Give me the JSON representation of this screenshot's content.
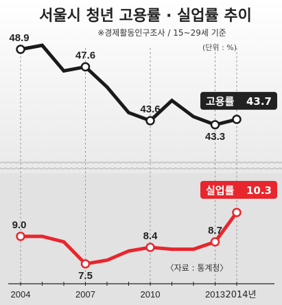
{
  "chart_data": {
    "type": "line",
    "title": "서울시 청년 고용률 · 실업률 추이",
    "subtitle": "※경제활동인구조사 / 15~29세 기준",
    "unit_label": "(단위 : %)",
    "source": "〈자료 : 통계청〉",
    "x": [
      2004,
      2005,
      2006,
      2007,
      2008,
      2009,
      2010,
      2011,
      2012,
      2013,
      2014
    ],
    "x_tick_labels": [
      {
        "x": 2004,
        "label": "2004"
      },
      {
        "x": 2007,
        "label": "2007"
      },
      {
        "x": 2010,
        "label": "2010"
      },
      {
        "x": 2013,
        "label": "2013"
      },
      {
        "x": 2014,
        "label": "2014년"
      }
    ],
    "series": [
      {
        "name": "고용률",
        "color": "#1a1a1a",
        "values": [
          48.9,
          49.2,
          47.3,
          47.6,
          46.1,
          44.2,
          43.6,
          45.1,
          43.9,
          43.3,
          43.7
        ],
        "data_labels": [
          {
            "x": 2004,
            "label": "48.9"
          },
          {
            "x": 2007,
            "label": "47.6"
          },
          {
            "x": 2010,
            "label": "43.6"
          },
          {
            "x": 2013,
            "label": "43.3"
          }
        ],
        "badge_label": "고용률",
        "badge_value": "43.7",
        "badge_color": "#222222"
      },
      {
        "name": "실업률",
        "color": "#e8262d",
        "values": [
          9.0,
          9.0,
          8.7,
          7.5,
          7.7,
          8.2,
          8.4,
          8.3,
          8.3,
          8.7,
          10.3
        ],
        "data_labels": [
          {
            "x": 2004,
            "label": "9.0"
          },
          {
            "x": 2007,
            "label": "7.5"
          },
          {
            "x": 2010,
            "label": "8.4"
          },
          {
            "x": 2013,
            "label": "8.7"
          }
        ],
        "badge_label": "실업률",
        "badge_value": "10.3",
        "badge_color": "#e8262d"
      }
    ],
    "axis_break": true,
    "grid": "vertical dashed at labeled years",
    "legend": "inline badges at right end of each line"
  }
}
